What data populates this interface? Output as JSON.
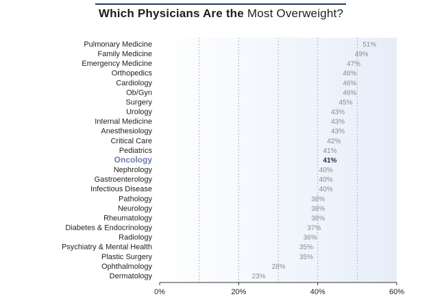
{
  "title": {
    "bold": "Which Physicians Are the",
    "light": "Most Overweight?"
  },
  "chart_data": {
    "type": "bar",
    "orientation": "horizontal",
    "title": "Which Physicians Are the Most Overweight?",
    "categories": [
      "Pulmonary Medicine",
      "Family Medicine",
      "Emergency Medicine",
      "Orthopedics",
      "Cardiology",
      "Ob/Gyn",
      "Surgery",
      "Urology",
      "Internal Medicine",
      "Anesthesiology",
      "Critical Care",
      "Pediatrics",
      "Oncology",
      "Nephrology",
      "Gastroenterology",
      "Infectious Disease",
      "Pathology",
      "Neurology",
      "Rheumatology",
      "Diabetes & Endocrinology",
      "Radiology",
      "Psychiatry & Mental Health",
      "Plastic Surgery",
      "Ophthalmology",
      "Dermatology"
    ],
    "values": [
      51,
      49,
      47,
      46,
      46,
      46,
      45,
      43,
      43,
      43,
      42,
      41,
      41,
      40,
      40,
      40,
      38,
      38,
      38,
      37,
      36,
      35,
      35,
      28,
      23
    ],
    "value_labels": [
      "51%",
      "49%",
      "47%",
      "46%",
      "46%",
      "46%",
      "45%",
      "43%",
      "43%",
      "43%",
      "42%",
      "41%",
      "41%",
      "40%",
      "40%",
      "40%",
      "38%",
      "38%",
      "38%",
      "37%",
      "36%",
      "35%",
      "35%",
      "28%",
      "23%"
    ],
    "highlight": "Oncology",
    "xlim": [
      0,
      60
    ],
    "xticks": [
      0,
      20,
      40,
      60
    ],
    "xtick_labels": [
      "0%",
      "20%",
      "40%",
      "60%"
    ],
    "grid_minor": [
      10,
      30,
      50
    ],
    "colors": {
      "bar": "#a3adb9",
      "bar_highlight": "#1f3a56",
      "highlight_label": "#6b7bb0",
      "grid": "#9aa0a8",
      "background_from": "#ffffff",
      "background_to": "#e6eefa"
    }
  }
}
